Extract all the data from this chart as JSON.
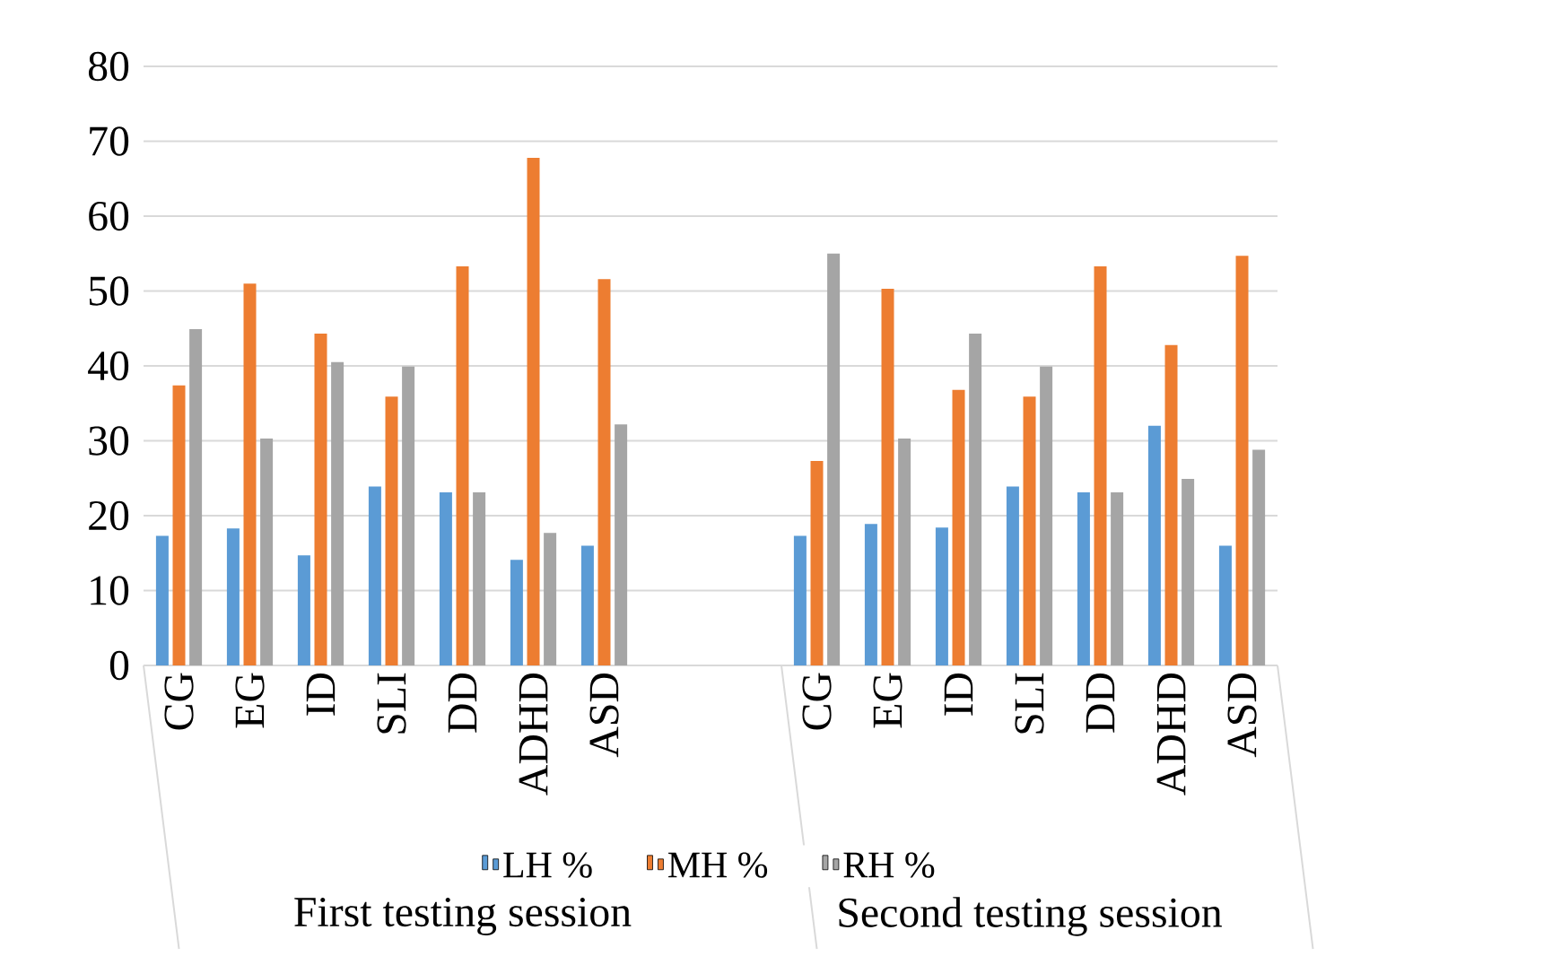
{
  "chart_data": {
    "type": "bar",
    "categories": [
      "CG",
      "EG",
      "ID",
      "SLI",
      "DD",
      "ADHD",
      "ASD",
      null,
      null,
      "CG",
      "EG",
      "ID",
      "SLI",
      "DD",
      "ADHD",
      "ASD"
    ],
    "series": [
      {
        "name": "LH %",
        "color": "#5b9bd5",
        "values": [
          17.3,
          18.3,
          14.7,
          23.9,
          23.1,
          14.1,
          16.0,
          null,
          null,
          17.3,
          18.9,
          18.4,
          23.9,
          23.1,
          32.0,
          16.0
        ]
      },
      {
        "name": "MH %",
        "color": "#ed7d31",
        "values": [
          37.4,
          51.0,
          44.3,
          35.9,
          53.3,
          67.8,
          51.6,
          null,
          null,
          27.3,
          50.3,
          36.8,
          35.9,
          53.3,
          42.8,
          54.7
        ]
      },
      {
        "name": "RH %",
        "color": "#a5a5a5",
        "values": [
          44.9,
          30.3,
          40.5,
          39.9,
          23.1,
          17.7,
          32.2,
          null,
          null,
          55.0,
          30.3,
          44.3,
          39.9,
          23.1,
          24.9,
          28.8
        ]
      }
    ],
    "annotations": [
      "First testing session",
      "Second testing session"
    ],
    "ylim": [
      0,
      80
    ],
    "yticks": [
      0,
      10,
      20,
      30,
      40,
      50,
      60,
      70,
      80
    ],
    "grid": "y",
    "legend": "bottom"
  }
}
